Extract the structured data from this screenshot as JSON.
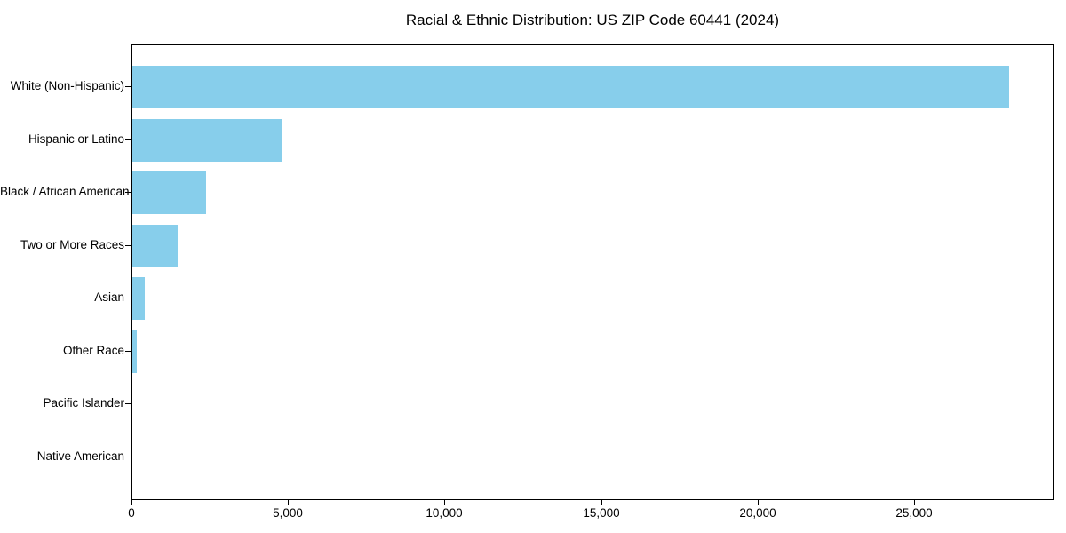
{
  "chart_data": {
    "type": "bar",
    "orientation": "horizontal",
    "title": "Racial & Ethnic Distribution: US ZIP Code 60441 (2024)",
    "categories": [
      "White (Non-Hispanic)",
      "Hispanic or Latino",
      "Black / African American",
      "Two or More Races",
      "Asian",
      "Other Race",
      "Pacific Islander",
      "Native American"
    ],
    "values": [
      28000,
      4800,
      2350,
      1450,
      400,
      140,
      0,
      0
    ],
    "xlabel": "",
    "ylabel": "",
    "xlim": [
      0,
      29400
    ],
    "x_ticks": [
      0,
      5000,
      10000,
      15000,
      20000,
      25000
    ],
    "x_tick_labels": [
      "0",
      "5,000",
      "10,000",
      "15,000",
      "20,000",
      "25,000"
    ],
    "bar_color": "#87CEEB",
    "spine_color": "#000000",
    "grid": false,
    "legend_position": "none"
  }
}
